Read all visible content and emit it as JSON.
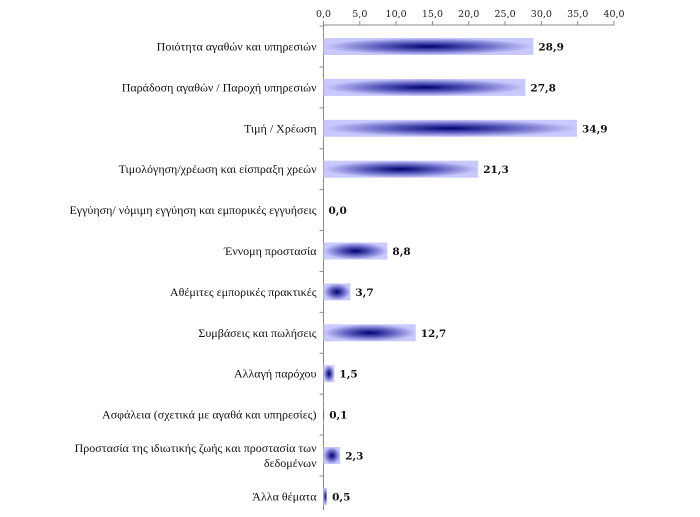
{
  "chart_data": {
    "type": "bar",
    "orientation": "horizontal",
    "categories": [
      "Ποιότητα αγαθών και υπηρεσιών",
      "Παράδοση αγαθών / Παροχή υπηρεσιών",
      "Τιμή / Χρέωση",
      "Τιμολόγηση/χρέωση και είσπραξη χρεών",
      "Εγγύηση/ νόμιμη εγγύηση και εμπορικές εγγυήσεις",
      "Έννομη προστασία",
      "Αθέμιτες εμπορικές πρακτικές",
      "Συμβάσεις και πωλήσεις",
      "Αλλαγή παρόχου",
      "Ασφάλεια (σχετικά με αγαθά και υπηρεσίες)",
      "Προστασία της ιδιωτικής ζωής και προστασία των δεδομένων",
      "Άλλα θέματα"
    ],
    "category_lines": [
      [
        "Ποιότητα αγαθών και υπηρεσιών"
      ],
      [
        "Παράδοση αγαθών / Παροχή υπηρεσιών"
      ],
      [
        "Τιμή / Χρέωση"
      ],
      [
        "Τιμολόγηση/χρέωση και είσπραξη χρεών"
      ],
      [
        "Εγγύηση/ νόμιμη εγγύηση και εμπορικές εγγυήσεις"
      ],
      [
        "Έννομη προστασία"
      ],
      [
        "Αθέμιτες εμπορικές πρακτικές"
      ],
      [
        "Συμβάσεις και πωλήσεις"
      ],
      [
        "Αλλαγή παρόχου"
      ],
      [
        "Ασφάλεια (σχετικά με αγαθά και υπηρεσίες)"
      ],
      [
        "Προστασία της ιδιωτικής ζωής και προστασία των",
        "δεδομένων"
      ],
      [
        "Άλλα θέματα"
      ]
    ],
    "values": [
      28.9,
      27.8,
      34.9,
      21.3,
      0.0,
      8.8,
      3.7,
      12.7,
      1.5,
      0.1,
      2.3,
      0.5
    ],
    "value_labels": [
      "28,9",
      "27,8",
      "34,9",
      "21,3",
      "0,0",
      "8,8",
      "3,7",
      "12,7",
      "1,5",
      "0,1",
      "2,3",
      "0,5"
    ],
    "xlim": [
      0,
      40
    ],
    "ticks": [
      0,
      5,
      10,
      15,
      20,
      25,
      30,
      35,
      40
    ],
    "tick_labels": [
      "0,0",
      "5,0",
      "10,0",
      "15,0",
      "20,0",
      "25,0",
      "30,0",
      "35,0",
      "40,0"
    ],
    "axis_position": "top",
    "grid": false,
    "legend": "none",
    "title": "",
    "xlabel": "",
    "ylabel": "",
    "colors": {
      "bar_edge": "#c9c9ff",
      "bar_center": "#000070",
      "axis": "#8a8a8a",
      "text": "#111111"
    }
  }
}
